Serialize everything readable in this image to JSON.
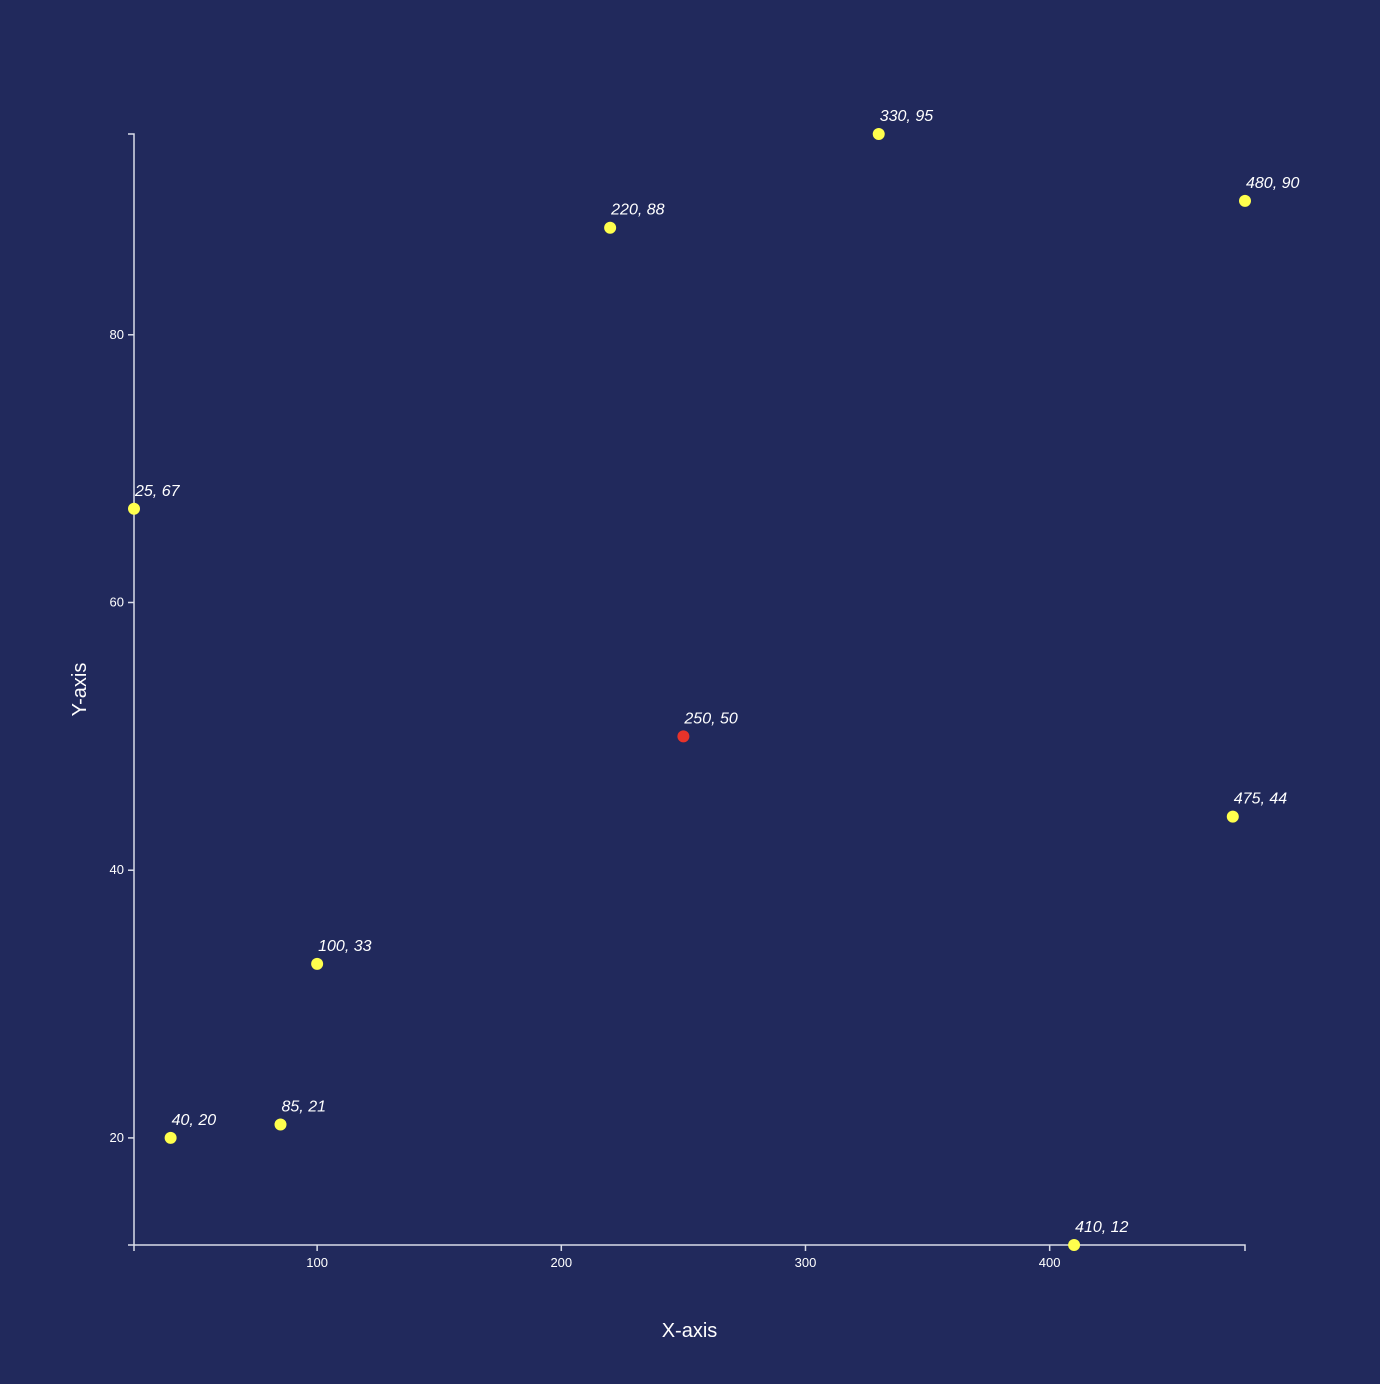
{
  "chart_data": {
    "type": "scatter",
    "title": "",
    "xlabel": "X-axis",
    "ylabel": "Y-axis",
    "xlim": [
      25,
      480
    ],
    "ylim": [
      12,
      95
    ],
    "xticks": [
      100,
      200,
      300,
      400
    ],
    "yticks": [
      20,
      40,
      60,
      80
    ],
    "grid": false,
    "colors": {
      "background": "#21295c",
      "point": "#ffff4d",
      "highlight": "#e8332a",
      "axis": "#d9dce8",
      "text": "#ffffff"
    },
    "points": [
      {
        "x": 25,
        "y": 67,
        "label": "25, 67",
        "highlight": false
      },
      {
        "x": 40,
        "y": 20,
        "label": "40, 20",
        "highlight": false
      },
      {
        "x": 85,
        "y": 21,
        "label": "85, 21",
        "highlight": false
      },
      {
        "x": 100,
        "y": 33,
        "label": "100, 33",
        "highlight": false
      },
      {
        "x": 220,
        "y": 88,
        "label": "220, 88",
        "highlight": false
      },
      {
        "x": 250,
        "y": 50,
        "label": "250, 50",
        "highlight": true
      },
      {
        "x": 330,
        "y": 95,
        "label": "330, 95",
        "highlight": false
      },
      {
        "x": 410,
        "y": 12,
        "label": "410, 12",
        "highlight": false
      },
      {
        "x": 475,
        "y": 44,
        "label": "475, 44",
        "highlight": false
      },
      {
        "x": 480,
        "y": 90,
        "label": "480, 90",
        "highlight": false
      }
    ]
  }
}
